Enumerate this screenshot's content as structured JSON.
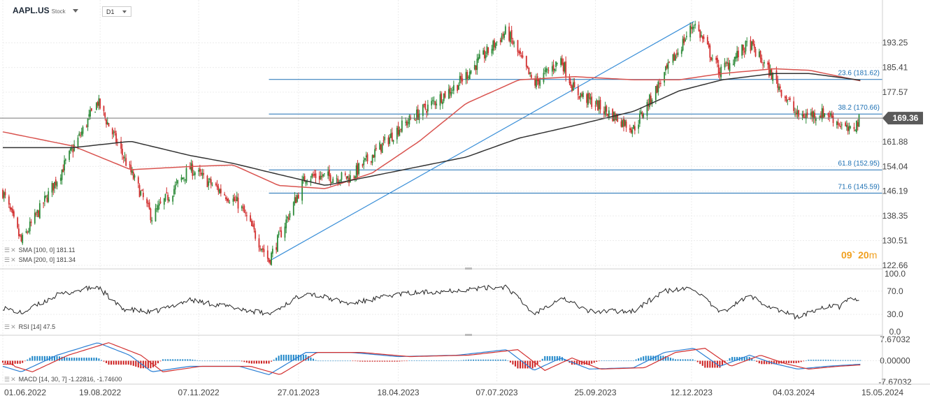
{
  "header": {
    "symbol": "AAPL.US",
    "type": "Stock",
    "timeframe": "D1"
  },
  "legend": {
    "sma100": "SMA [100, 0] 181.11",
    "sma200": "SMA [200, 0] 181.34",
    "rsi": "RSI [14] 47.5",
    "macd": "MACD [14, 30, 7] -1.22816, -1.74600"
  },
  "timer": {
    "hours": "09",
    "minutes": "20",
    "unit": "m"
  },
  "colors": {
    "up": "#2e8b3a",
    "down": "#d23030",
    "sma100": "#d9534f",
    "sma200": "#333333",
    "fib": "#1b6fb3",
    "trend": "#3a8fd8",
    "macd_pos": "#1d86c8",
    "macd_neg": "#cc1f1f",
    "price_tag": "#5a5a5a",
    "timer": "#f0a020"
  },
  "chart_data": {
    "type": "candlestick",
    "instrument": "AAPL.US",
    "timeframe": "D1",
    "last_price": "169.36",
    "price_axis_ticks": [
      "193.25",
      "185.41",
      "177.57",
      "169.36",
      "161.88",
      "154.04",
      "146.19",
      "138.35",
      "130.51",
      "122.66"
    ],
    "price_range": [
      122.66,
      200.6
    ],
    "x_axis_labels": [
      "01.06.2022",
      "19.08.2022",
      "07.11.2022",
      "27.01.2023",
      "18.04.2023",
      "07.07.2023",
      "25.09.2023",
      "12.12.2023",
      "04.03.2024",
      "15.05.2024"
    ],
    "price_keypoints": [
      [
        "2022-06-01",
        146.0
      ],
      [
        "2022-06-16",
        130.1
      ],
      [
        "2022-07-15",
        150.0
      ],
      [
        "2022-08-17",
        174.5
      ],
      [
        "2022-09-30",
        138.0
      ],
      [
        "2022-10-31",
        153.5
      ],
      [
        "2022-11-15",
        149.0
      ],
      [
        "2022-12-10",
        142.0
      ],
      [
        "2023-01-03",
        124.2
      ],
      [
        "2023-02-02",
        151.0
      ],
      [
        "2023-03-10",
        150.5
      ],
      [
        "2023-04-18",
        166.0
      ],
      [
        "2023-06-05",
        180.0
      ],
      [
        "2023-07-15",
        197.0
      ],
      [
        "2023-08-06",
        180.0
      ],
      [
        "2023-08-28",
        188.0
      ],
      [
        "2023-09-08",
        178.0
      ],
      [
        "2023-10-26",
        166.0
      ],
      [
        "2023-12-14",
        199.5
      ],
      [
        "2024-01-04",
        184.0
      ],
      [
        "2024-01-28",
        193.0
      ],
      [
        "2024-02-17",
        182.0
      ],
      [
        "2024-03-07",
        170.0
      ],
      [
        "2024-03-31",
        171.0
      ],
      [
        "2024-04-18",
        165.0
      ],
      [
        "2024-04-28",
        169.36
      ]
    ],
    "sma100_keypoints": [
      [
        "2022-06-01",
        165.0
      ],
      [
        "2022-07-28",
        160.5
      ],
      [
        "2022-09-13",
        153.0
      ],
      [
        "2022-10-31",
        154.0
      ],
      [
        "2022-12-05",
        154.5
      ],
      [
        "2023-01-11",
        148.0
      ],
      [
        "2023-02-18",
        147.0
      ],
      [
        "2023-03-28",
        152.0
      ],
      [
        "2023-05-05",
        162.0
      ],
      [
        "2023-06-12",
        174.0
      ],
      [
        "2023-07-25",
        181.5
      ],
      [
        "2023-09-08",
        182.5
      ],
      [
        "2023-10-26",
        181.5
      ],
      [
        "2023-12-02",
        181.5
      ],
      [
        "2024-01-06",
        183.5
      ],
      [
        "2024-02-17",
        185.0
      ],
      [
        "2024-03-17",
        184.5
      ],
      [
        "2024-04-28",
        181.11
      ]
    ],
    "sma200_keypoints": [
      [
        "2022-06-01",
        160.0
      ],
      [
        "2022-07-28",
        160.0
      ],
      [
        "2022-09-13",
        162.0
      ],
      [
        "2022-10-31",
        157.5
      ],
      [
        "2022-12-05",
        155.0
      ],
      [
        "2023-01-11",
        151.5
      ],
      [
        "2023-02-18",
        148.0
      ],
      [
        "2023-03-28",
        151.0
      ],
      [
        "2023-05-05",
        154.0
      ],
      [
        "2023-06-12",
        157.0
      ],
      [
        "2023-07-25",
        163.0
      ],
      [
        "2023-09-08",
        167.0
      ],
      [
        "2023-10-26",
        171.5
      ],
      [
        "2023-12-02",
        178.0
      ],
      [
        "2024-01-06",
        181.5
      ],
      [
        "2024-02-17",
        183.5
      ],
      [
        "2024-03-17",
        183.5
      ],
      [
        "2024-04-28",
        181.34
      ]
    ],
    "trendline": {
      "from": [
        "2023-01-03",
        124.0
      ],
      "to": [
        "2023-12-14",
        200.0
      ]
    },
    "fib_levels": [
      {
        "label": "23.6 (181.62)",
        "value": 181.62,
        "from": "2023-01-03"
      },
      {
        "label": "38.2 (170.66)",
        "value": 170.66,
        "from": "2023-01-03"
      },
      {
        "label": "61.8 (152.95)",
        "value": 152.95,
        "from": "2023-01-03"
      },
      {
        "label": "71.6 (145.59)",
        "value": 145.59,
        "from": "2023-01-03"
      }
    ],
    "rsi": {
      "period": 14,
      "last": 47.5,
      "ticks": [
        "100.0",
        "70.0",
        "30.0",
        "0.0"
      ],
      "range": [
        0,
        100
      ],
      "keypoints": [
        [
          "2022-06-01",
          42
        ],
        [
          "2022-06-16",
          32
        ],
        [
          "2022-07-15",
          63
        ],
        [
          "2022-08-17",
          78
        ],
        [
          "2022-09-05",
          40
        ],
        [
          "2022-09-30",
          33
        ],
        [
          "2022-10-31",
          55
        ],
        [
          "2022-12-10",
          40
        ],
        [
          "2023-01-03",
          30
        ],
        [
          "2023-02-02",
          68
        ],
        [
          "2023-03-10",
          48
        ],
        [
          "2023-04-18",
          65
        ],
        [
          "2023-06-05",
          72
        ],
        [
          "2023-07-15",
          78
        ],
        [
          "2023-08-06",
          30
        ],
        [
          "2023-08-28",
          60
        ],
        [
          "2023-09-20",
          35
        ],
        [
          "2023-10-26",
          36
        ],
        [
          "2023-11-20",
          70
        ],
        [
          "2023-12-14",
          75
        ],
        [
          "2024-01-04",
          32
        ],
        [
          "2024-01-28",
          62
        ],
        [
          "2024-02-17",
          40
        ],
        [
          "2024-03-07",
          25
        ],
        [
          "2024-03-31",
          45
        ],
        [
          "2024-04-10",
          42
        ],
        [
          "2024-04-18",
          60
        ],
        [
          "2024-04-28",
          47.5
        ]
      ]
    },
    "macd": {
      "params": [
        14,
        30,
        7
      ],
      "last_macd": -1.22816,
      "last_signal": -1.746,
      "ticks": [
        "7.67032",
        "0.00000",
        "-7.67032"
      ],
      "range": [
        -7.67032,
        7.67032
      ],
      "keypoints": [
        [
          "2022-06-01",
          -2.0
        ],
        [
          "2022-06-16",
          -4.0
        ],
        [
          "2022-07-15",
          2.0
        ],
        [
          "2022-08-17",
          6.5
        ],
        [
          "2022-09-12",
          2.0
        ],
        [
          "2022-09-30",
          -4.0
        ],
        [
          "2022-10-31",
          -2.0
        ],
        [
          "2022-12-10",
          -2.0
        ],
        [
          "2023-01-03",
          -5.0
        ],
        [
          "2023-02-02",
          3.0
        ],
        [
          "2023-03-10",
          3.0
        ],
        [
          "2023-04-18",
          1.5
        ],
        [
          "2023-06-05",
          2.0
        ],
        [
          "2023-07-15",
          4.0
        ],
        [
          "2023-08-06",
          -3.5
        ],
        [
          "2023-08-28",
          1.0
        ],
        [
          "2023-09-20",
          -3.0
        ],
        [
          "2023-10-26",
          -2.5
        ],
        [
          "2023-11-20",
          3.0
        ],
        [
          "2023-12-14",
          4.5
        ],
        [
          "2024-01-04",
          -2.0
        ],
        [
          "2024-01-28",
          2.0
        ],
        [
          "2024-02-17",
          -1.0
        ],
        [
          "2024-03-07",
          -3.0
        ],
        [
          "2024-03-31",
          -2.0
        ],
        [
          "2024-04-28",
          -1.22816
        ]
      ]
    }
  }
}
